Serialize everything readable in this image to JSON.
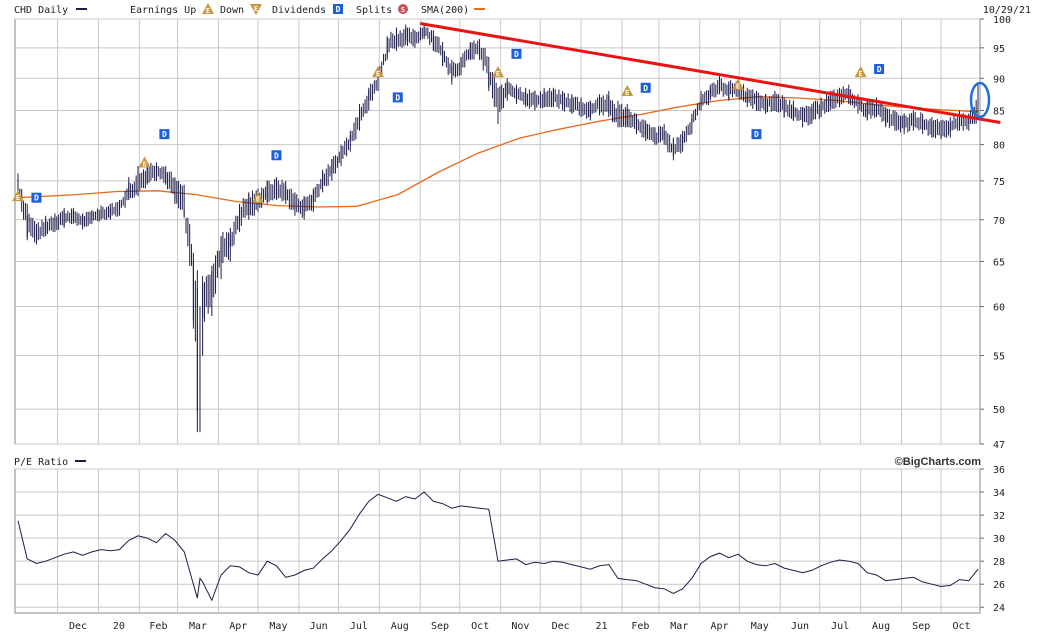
{
  "header": {
    "symbol_label": "CHD Daily",
    "earnings_up_label": "Earnings Up",
    "down_label": "Down",
    "dividends_label": "Dividends",
    "splits_label": "Splits",
    "sma_label": "SMA(200)",
    "date_label": "10/29/21",
    "icon_glyphs": {
      "earnings": "E",
      "dividend": "D",
      "split": "S"
    }
  },
  "pe_panel": {
    "title": "P/E Ratio",
    "brand": "©BigCharts.com"
  },
  "colors": {
    "price_bars": "#1c1c4a",
    "sma": "#e86a1a",
    "trendline": "#e81414",
    "highlight": "#1e6fd6",
    "dividend": "#1f5fd6",
    "earnings": "#c8963c",
    "grid": "#c8c8c8"
  },
  "chart_data": [
    {
      "type": "line",
      "title": "CHD Daily",
      "y_scale": "log",
      "ylim": [
        47,
        100
      ],
      "y_ticks": [
        100,
        95,
        90,
        85,
        80,
        75,
        70,
        65,
        60,
        55,
        50,
        47
      ],
      "x_ticks": [
        "Dec",
        "20",
        "Feb",
        "Mar",
        "Apr",
        "May",
        "Jun",
        "Jul",
        "Aug",
        "Sep",
        "Oct",
        "Nov",
        "Dec",
        "21",
        "Feb",
        "Mar",
        "Apr",
        "May",
        "Jun",
        "Jul",
        "Aug",
        "Sep",
        "Oct"
      ],
      "grid": true,
      "series": [
        {
          "name": "CHD Daily",
          "kind": "ohlc_close",
          "x": [
            "2019-11-01",
            "2019-11-08",
            "2019-11-15",
            "2019-11-22",
            "2019-11-29",
            "2019-12-06",
            "2019-12-13",
            "2019-12-20",
            "2019-12-27",
            "2020-01-03",
            "2020-01-10",
            "2020-01-17",
            "2020-01-24",
            "2020-01-31",
            "2020-02-07",
            "2020-02-14",
            "2020-02-21",
            "2020-02-28",
            "2020-03-06",
            "2020-03-13",
            "2020-03-16",
            "2020-03-18",
            "2020-03-20",
            "2020-03-27",
            "2020-04-03",
            "2020-04-10",
            "2020-04-17",
            "2020-04-24",
            "2020-05-01",
            "2020-05-08",
            "2020-05-15",
            "2020-05-22",
            "2020-05-29",
            "2020-06-05",
            "2020-06-12",
            "2020-06-19",
            "2020-06-26",
            "2020-07-03",
            "2020-07-10",
            "2020-07-17",
            "2020-07-24",
            "2020-07-31",
            "2020-08-07",
            "2020-08-14",
            "2020-08-21",
            "2020-08-28",
            "2020-09-04",
            "2020-09-11",
            "2020-09-18",
            "2020-09-25",
            "2020-10-02",
            "2020-10-09",
            "2020-10-16",
            "2020-10-23",
            "2020-10-30",
            "2020-11-06",
            "2020-11-13",
            "2020-11-20",
            "2020-11-27",
            "2020-12-04",
            "2020-12-11",
            "2020-12-18",
            "2020-12-25",
            "2021-01-01",
            "2021-01-08",
            "2021-01-15",
            "2021-01-22",
            "2021-01-29",
            "2021-02-05",
            "2021-02-12",
            "2021-02-19",
            "2021-02-26",
            "2021-03-05",
            "2021-03-12",
            "2021-03-19",
            "2021-03-26",
            "2021-04-02",
            "2021-04-09",
            "2021-04-16",
            "2021-04-23",
            "2021-04-30",
            "2021-05-07",
            "2021-05-14",
            "2021-05-21",
            "2021-05-28",
            "2021-06-04",
            "2021-06-11",
            "2021-06-18",
            "2021-06-25",
            "2021-07-02",
            "2021-07-09",
            "2021-07-16",
            "2021-07-23",
            "2021-07-30",
            "2021-08-06",
            "2021-08-13",
            "2021-08-20",
            "2021-08-27",
            "2021-09-03",
            "2021-09-10",
            "2021-09-17",
            "2021-09-24",
            "2021-10-01",
            "2021-10-08",
            "2021-10-15",
            "2021-10-22",
            "2021-10-29"
          ],
          "close": [
            74.5,
            69.5,
            68.2,
            69.0,
            69.8,
            70.2,
            70.5,
            69.8,
            70.4,
            70.8,
            71.0,
            71.5,
            73.5,
            74.2,
            76.0,
            76.5,
            75.8,
            74.0,
            72.5,
            63.0,
            57.5,
            49.0,
            60.5,
            62.5,
            66.5,
            67.0,
            70.5,
            71.8,
            72.5,
            73.5,
            74.0,
            73.5,
            72.0,
            71.5,
            72.5,
            75.0,
            76.5,
            78.5,
            80.5,
            84.0,
            87.0,
            89.5,
            95.5,
            96.5,
            97.0,
            96.5,
            98.0,
            96.5,
            94.0,
            91.0,
            92.0,
            94.5,
            95.0,
            91.5,
            86.0,
            88.5,
            87.5,
            87.0,
            86.5,
            86.8,
            87.0,
            86.5,
            86.0,
            85.5,
            85.0,
            86.0,
            85.5,
            84.0,
            84.5,
            83.0,
            82.0,
            81.0,
            81.5,
            79.0,
            80.5,
            83.0,
            86.5,
            87.5,
            89.0,
            88.0,
            88.5,
            87.0,
            86.5,
            86.0,
            86.5,
            85.5,
            85.0,
            84.0,
            84.5,
            85.5,
            86.5,
            87.0,
            87.5,
            86.0,
            85.0,
            85.5,
            84.0,
            83.5,
            83.0,
            83.5,
            83.0,
            82.5,
            82.0,
            82.5,
            83.5,
            83.0,
            85.0
          ],
          "low": [
            72.5,
            67.5,
            67.0,
            68.0,
            68.5,
            69.0,
            69.5,
            68.8,
            69.5,
            70.0,
            70.0,
            70.5,
            72.5,
            73.0,
            74.5,
            75.0,
            74.5,
            72.0,
            70.5,
            58.5,
            48.0,
            48.0,
            55.0,
            59.0,
            63.0,
            65.0,
            68.5,
            70.0,
            71.0,
            72.0,
            72.5,
            72.0,
            70.5,
            70.0,
            71.0,
            73.5,
            75.0,
            77.0,
            79.0,
            82.0,
            85.0,
            88.0,
            93.0,
            94.5,
            95.5,
            95.0,
            96.5,
            94.5,
            92.0,
            89.0,
            90.5,
            93.0,
            93.0,
            88.0,
            83.0,
            86.5,
            86.0,
            85.5,
            85.0,
            85.5,
            85.5,
            85.0,
            84.5,
            84.0,
            83.5,
            84.5,
            84.0,
            82.5,
            82.5,
            81.5,
            80.5,
            80.0,
            80.0,
            77.8,
            79.0,
            81.5,
            85.0,
            86.5,
            87.5,
            86.5,
            87.0,
            85.5,
            85.0,
            84.5,
            85.0,
            84.0,
            83.5,
            82.5,
            83.0,
            84.0,
            85.0,
            85.5,
            86.0,
            84.5,
            83.5,
            84.0,
            82.5,
            82.0,
            81.5,
            82.0,
            81.5,
            81.0,
            80.8,
            81.0,
            82.0,
            82.0,
            84.0
          ],
          "high": [
            76.0,
            72.0,
            69.5,
            70.5,
            70.8,
            71.5,
            71.5,
            70.8,
            71.2,
            71.8,
            72.0,
            72.5,
            75.5,
            77.0,
            77.5,
            77.5,
            77.0,
            75.5,
            74.5,
            66.0,
            64.0,
            60.0,
            62.5,
            64.5,
            68.0,
            69.0,
            72.0,
            73.5,
            74.0,
            75.0,
            75.5,
            75.0,
            73.5,
            73.0,
            74.0,
            76.5,
            78.0,
            80.0,
            82.0,
            86.0,
            88.5,
            91.0,
            97.0,
            98.5,
            99.0,
            98.0,
            99.0,
            98.0,
            96.0,
            93.0,
            93.5,
            96.0,
            96.5,
            93.5,
            88.5,
            90.0,
            89.0,
            88.5,
            88.0,
            88.5,
            88.5,
            88.0,
            87.5,
            87.0,
            86.5,
            87.5,
            88.0,
            86.5,
            86.0,
            84.5,
            83.5,
            82.5,
            83.0,
            81.0,
            82.0,
            84.5,
            88.0,
            89.0,
            90.5,
            89.5,
            90.0,
            88.5,
            88.0,
            87.5,
            88.0,
            87.0,
            86.5,
            85.5,
            86.0,
            87.0,
            88.0,
            88.5,
            89.0,
            87.5,
            86.5,
            87.0,
            85.5,
            85.0,
            84.5,
            85.0,
            84.5,
            84.0,
            83.5,
            84.0,
            85.0,
            84.5,
            89.0
          ]
        },
        {
          "name": "SMA(200)",
          "x": [
            "2019-11-01",
            "2019-12-15",
            "2020-01-15",
            "2020-02-15",
            "2020-03-15",
            "2020-04-15",
            "2020-05-15",
            "2020-06-15",
            "2020-07-15",
            "2020-08-15",
            "2020-09-15",
            "2020-10-15",
            "2020-11-15",
            "2020-12-15",
            "2021-01-15",
            "2021-02-15",
            "2021-03-15",
            "2021-04-15",
            "2021-05-15",
            "2021-06-15",
            "2021-07-15",
            "2021-08-15",
            "2021-09-15",
            "2021-10-29"
          ],
          "values": [
            72.8,
            73.2,
            73.6,
            73.7,
            73.2,
            72.3,
            71.8,
            71.6,
            71.7,
            73.2,
            76.2,
            78.8,
            80.9,
            82.2,
            83.4,
            84.4,
            85.5,
            86.5,
            87.1,
            86.9,
            86.5,
            85.8,
            85.3,
            84.8
          ]
        }
      ],
      "trendline": {
        "x": [
          "2020-09-01",
          "2021-11-15"
        ],
        "y": [
          99.2,
          83.2
        ]
      },
      "events": [
        {
          "type": "earnings",
          "x": "2019-11-01",
          "y": 73.0
        },
        {
          "type": "dividend",
          "x": "2019-11-15",
          "y": 72.8
        },
        {
          "type": "earnings",
          "x": "2020-02-05",
          "y": 77.5
        },
        {
          "type": "dividend",
          "x": "2020-02-20",
          "y": 81.5
        },
        {
          "type": "earnings",
          "x": "2020-05-01",
          "y": 72.8
        },
        {
          "type": "dividend",
          "x": "2020-05-15",
          "y": 78.5
        },
        {
          "type": "earnings",
          "x": "2020-07-31",
          "y": 91.0
        },
        {
          "type": "dividend",
          "x": "2020-08-15",
          "y": 87.0
        },
        {
          "type": "earnings",
          "x": "2020-10-30",
          "y": 91.0
        },
        {
          "type": "dividend",
          "x": "2020-11-13",
          "y": 94.0
        },
        {
          "type": "earnings",
          "x": "2021-02-05",
          "y": 88.0
        },
        {
          "type": "dividend",
          "x": "2021-02-19",
          "y": 88.5
        },
        {
          "type": "earnings",
          "x": "2021-04-30",
          "y": 89.0
        },
        {
          "type": "dividend",
          "x": "2021-05-14",
          "y": 81.5
        },
        {
          "type": "earnings",
          "x": "2021-08-01",
          "y": 91.0
        },
        {
          "type": "dividend",
          "x": "2021-08-15",
          "y": 91.5
        }
      ]
    },
    {
      "type": "line",
      "title": "P/E Ratio",
      "ylim": [
        23.5,
        36
      ],
      "y_ticks": [
        36,
        34,
        32,
        30,
        28,
        26,
        24
      ],
      "x_ticks": [
        "Dec",
        "20",
        "Feb",
        "Mar",
        "Apr",
        "May",
        "Jun",
        "Jul",
        "Aug",
        "Sep",
        "Oct",
        "Nov",
        "Dec",
        "21",
        "Feb",
        "Mar",
        "Apr",
        "May",
        "Jun",
        "Jul",
        "Aug",
        "Sep",
        "Oct"
      ],
      "grid": true,
      "series": [
        {
          "name": "P/E Ratio",
          "x": [
            "2019-11-01",
            "2019-11-08",
            "2019-11-15",
            "2019-11-22",
            "2019-11-29",
            "2019-12-06",
            "2019-12-13",
            "2019-12-20",
            "2019-12-27",
            "2020-01-03",
            "2020-01-10",
            "2020-01-17",
            "2020-01-24",
            "2020-01-31",
            "2020-02-07",
            "2020-02-14",
            "2020-02-21",
            "2020-02-28",
            "2020-03-06",
            "2020-03-13",
            "2020-03-16",
            "2020-03-18",
            "2020-03-20",
            "2020-03-27",
            "2020-04-03",
            "2020-04-10",
            "2020-04-17",
            "2020-04-24",
            "2020-05-01",
            "2020-05-08",
            "2020-05-15",
            "2020-05-22",
            "2020-05-29",
            "2020-06-05",
            "2020-06-12",
            "2020-06-19",
            "2020-06-26",
            "2020-07-03",
            "2020-07-10",
            "2020-07-17",
            "2020-07-24",
            "2020-07-31",
            "2020-08-07",
            "2020-08-14",
            "2020-08-21",
            "2020-08-28",
            "2020-09-04",
            "2020-09-11",
            "2020-09-18",
            "2020-09-25",
            "2020-10-02",
            "2020-10-09",
            "2020-10-16",
            "2020-10-23",
            "2020-10-30",
            "2020-11-06",
            "2020-11-13",
            "2020-11-20",
            "2020-11-27",
            "2020-12-04",
            "2020-12-11",
            "2020-12-18",
            "2020-12-25",
            "2021-01-01",
            "2021-01-08",
            "2021-01-15",
            "2021-01-22",
            "2021-01-29",
            "2021-02-05",
            "2021-02-12",
            "2021-02-19",
            "2021-02-26",
            "2021-03-05",
            "2021-03-12",
            "2021-03-19",
            "2021-03-26",
            "2021-04-02",
            "2021-04-09",
            "2021-04-16",
            "2021-04-23",
            "2021-04-30",
            "2021-05-07",
            "2021-05-14",
            "2021-05-21",
            "2021-05-28",
            "2021-06-04",
            "2021-06-11",
            "2021-06-18",
            "2021-06-25",
            "2021-07-02",
            "2021-07-09",
            "2021-07-16",
            "2021-07-23",
            "2021-07-30",
            "2021-08-06",
            "2021-08-13",
            "2021-08-20",
            "2021-08-27",
            "2021-09-03",
            "2021-09-10",
            "2021-09-17",
            "2021-09-24",
            "2021-10-01",
            "2021-10-08",
            "2021-10-15",
            "2021-10-22",
            "2021-10-29"
          ],
          "values": [
            31.5,
            28.2,
            27.8,
            28.0,
            28.3,
            28.6,
            28.8,
            28.5,
            28.8,
            29.0,
            28.9,
            29.0,
            29.8,
            30.2,
            30.0,
            29.6,
            30.4,
            29.8,
            28.8,
            26.0,
            24.8,
            26.5,
            26.2,
            24.6,
            26.8,
            27.6,
            27.5,
            27.0,
            26.8,
            28.0,
            27.6,
            26.6,
            26.8,
            27.2,
            27.4,
            28.2,
            28.9,
            29.8,
            30.8,
            32.1,
            33.2,
            33.8,
            33.5,
            33.2,
            33.6,
            33.4,
            34.0,
            33.2,
            33.0,
            32.6,
            32.8,
            32.7,
            32.6,
            32.5,
            28.0,
            28.1,
            28.2,
            27.7,
            27.9,
            27.8,
            28.0,
            27.9,
            27.7,
            27.5,
            27.3,
            27.6,
            27.7,
            26.5,
            26.4,
            26.3,
            26.0,
            25.7,
            25.6,
            25.2,
            25.6,
            26.5,
            27.8,
            28.4,
            28.7,
            28.3,
            28.6,
            28.0,
            27.7,
            27.6,
            27.8,
            27.4,
            27.2,
            27.0,
            27.2,
            27.6,
            27.9,
            28.1,
            28.0,
            27.8,
            27.0,
            26.8,
            26.3,
            26.4,
            26.5,
            26.6,
            26.2,
            26.0,
            25.8,
            25.9,
            26.4,
            26.3,
            27.3
          ]
        }
      ]
    }
  ]
}
